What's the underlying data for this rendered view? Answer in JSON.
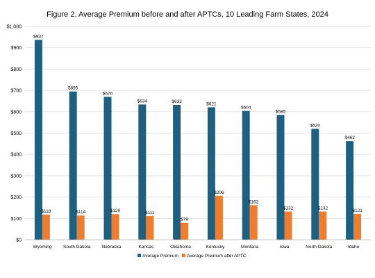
{
  "chart_data": {
    "type": "bar",
    "title": "Figure 2. Average Premium before and after APTCs, 10 Leading Farm States, 2024",
    "xlabel": "",
    "ylabel": "",
    "categories": [
      "Wyoming",
      "South Dakota",
      "Nebraska",
      "Kansas",
      "Oklahoma",
      "Kentucky",
      "Montana",
      "Iowa",
      "North Dakota",
      "Idaho"
    ],
    "series": [
      {
        "name": "Average Premium",
        "color": "#1f5f7f",
        "values": [
          937,
          695,
          670,
          634,
          632,
          621,
          604,
          585,
          520,
          462
        ],
        "labels": [
          "$937",
          "$695",
          "$670",
          "$634",
          "$632",
          "$621",
          "$604",
          "$585",
          "$520",
          "$462"
        ]
      },
      {
        "name": "Average Premium after APTC",
        "color": "#ed7d31",
        "values": [
          118,
          114,
          120,
          111,
          79,
          206,
          162,
          132,
          132,
          121
        ],
        "labels": [
          "$118",
          "$114",
          "$120",
          "$111",
          "$79",
          "$206",
          "$162",
          "$132",
          "$132",
          "$121"
        ]
      }
    ],
    "ylim": [
      0,
      1000
    ],
    "yticks": [
      0,
      100,
      200,
      300,
      400,
      500,
      600,
      700,
      800,
      900,
      1000
    ],
    "ytick_labels": [
      "$0",
      "$100",
      "$200",
      "$300",
      "$400",
      "$500",
      "$600",
      "$700",
      "$800",
      "$900",
      "$1,000"
    ],
    "grid": true,
    "legend_position": "bottom"
  }
}
